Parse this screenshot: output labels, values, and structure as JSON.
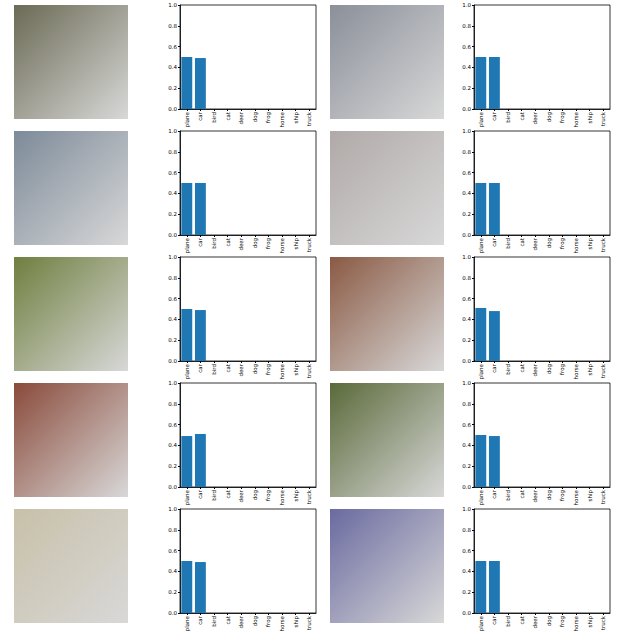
{
  "chart_data": [
    {
      "type": "bar",
      "categories": [
        "plane",
        "car",
        "bird",
        "cat",
        "deer",
        "dog",
        "frog",
        "horse",
        "ship",
        "truck"
      ],
      "values": [
        0.5,
        0.49,
        0,
        0,
        0,
        0,
        0,
        0,
        0,
        0
      ],
      "color": "#1f77b4",
      "ylim": [
        0,
        1
      ],
      "yticks": [
        {
          "value": 0,
          "label": "0.0"
        },
        0.2,
        0.4,
        0.6,
        0.8,
        {
          "value": 1,
          "label": "1.0"
        }
      ]
    },
    {
      "type": "bar",
      "categories": [
        "plane",
        "car",
        "bird",
        "cat",
        "deer",
        "dog",
        "frog",
        "horse",
        "ship",
        "truck"
      ],
      "values": [
        0.5,
        0.5,
        0,
        0,
        0,
        0,
        0,
        0,
        0,
        0
      ],
      "color": "#1f77b4",
      "ylim": [
        0,
        1
      ],
      "yticks": [
        {
          "value": 0,
          "label": "0.0"
        },
        0.2,
        0.4,
        0.6,
        0.8,
        {
          "value": 1,
          "label": "1.0"
        }
      ]
    },
    {
      "type": "bar",
      "categories": [
        "plane",
        "car",
        "bird",
        "cat",
        "deer",
        "dog",
        "frog",
        "horse",
        "ship",
        "truck"
      ],
      "values": [
        0.5,
        0.5,
        0,
        0,
        0,
        0,
        0,
        0,
        0,
        0
      ],
      "color": "#1f77b4",
      "ylim": [
        0,
        1
      ],
      "yticks": [
        {
          "value": 0,
          "label": "0.0"
        },
        0.2,
        0.4,
        0.6,
        0.8,
        {
          "value": 1,
          "label": "1.0"
        }
      ]
    },
    {
      "type": "bar",
      "categories": [
        "plane",
        "car",
        "bird",
        "cat",
        "deer",
        "dog",
        "frog",
        "horse",
        "ship",
        "truck"
      ],
      "values": [
        0.5,
        0.5,
        0,
        0,
        0,
        0,
        0,
        0,
        0,
        0
      ],
      "color": "#1f77b4",
      "ylim": [
        0,
        1
      ],
      "yticks": [
        {
          "value": 0,
          "label": "0.0"
        },
        0.2,
        0.4,
        0.6,
        0.8,
        {
          "value": 1,
          "label": "1.0"
        }
      ]
    },
    {
      "type": "bar",
      "categories": [
        "plane",
        "car",
        "bird",
        "cat",
        "deer",
        "dog",
        "frog",
        "horse",
        "ship",
        "truck"
      ],
      "values": [
        0.5,
        0.49,
        0,
        0,
        0,
        0,
        0,
        0,
        0,
        0
      ],
      "color": "#1f77b4",
      "ylim": [
        0,
        1
      ],
      "yticks": [
        {
          "value": 0,
          "label": "0.0"
        },
        0.2,
        0.4,
        0.6,
        0.8,
        {
          "value": 1,
          "label": "1.0"
        }
      ]
    },
    {
      "type": "bar",
      "categories": [
        "plane",
        "car",
        "bird",
        "cat",
        "deer",
        "dog",
        "frog",
        "horse",
        "ship",
        "truck"
      ],
      "values": [
        0.51,
        0.48,
        0,
        0,
        0,
        0,
        0,
        0,
        0,
        0
      ],
      "color": "#1f77b4",
      "ylim": [
        0,
        1
      ],
      "yticks": [
        {
          "value": 0,
          "label": "0.0"
        },
        0.2,
        0.4,
        0.6,
        0.8,
        {
          "value": 1,
          "label": "1.0"
        }
      ]
    },
    {
      "type": "bar",
      "categories": [
        "plane",
        "car",
        "bird",
        "cat",
        "deer",
        "dog",
        "frog",
        "horse",
        "ship",
        "truck"
      ],
      "values": [
        0.49,
        0.51,
        0,
        0,
        0,
        0,
        0,
        0,
        0,
        0
      ],
      "color": "#1f77b4",
      "ylim": [
        0,
        1
      ],
      "yticks": [
        {
          "value": 0,
          "label": "0.0"
        },
        0.2,
        0.4,
        0.6,
        0.8,
        {
          "value": 1,
          "label": "1.0"
        }
      ]
    },
    {
      "type": "bar",
      "categories": [
        "plane",
        "car",
        "bird",
        "cat",
        "deer",
        "dog",
        "frog",
        "horse",
        "ship",
        "truck"
      ],
      "values": [
        0.5,
        0.49,
        0,
        0,
        0,
        0,
        0,
        0,
        0,
        0
      ],
      "color": "#1f77b4",
      "ylim": [
        0,
        1
      ],
      "yticks": [
        {
          "value": 0,
          "label": "0.0"
        },
        0.2,
        0.4,
        0.6,
        0.8,
        {
          "value": 1,
          "label": "1.0"
        }
      ]
    },
    {
      "type": "bar",
      "categories": [
        "plane",
        "car",
        "bird",
        "cat",
        "deer",
        "dog",
        "frog",
        "horse",
        "ship",
        "truck"
      ],
      "values": [
        0.5,
        0.49,
        0,
        0,
        0,
        0,
        0,
        0,
        0,
        0
      ],
      "color": "#1f77b4",
      "ylim": [
        0,
        1
      ],
      "yticks": [
        {
          "value": 0,
          "label": "0.0"
        },
        0.2,
        0.4,
        0.6,
        0.8,
        {
          "value": 1,
          "label": "1.0"
        }
      ]
    },
    {
      "type": "bar",
      "categories": [
        "plane",
        "car",
        "bird",
        "cat",
        "deer",
        "dog",
        "frog",
        "horse",
        "ship",
        "truck"
      ],
      "values": [
        0.5,
        0.5,
        0,
        0,
        0,
        0,
        0,
        0,
        0,
        0
      ],
      "color": "#1f77b4",
      "ylim": [
        0,
        1
      ],
      "yticks": [
        {
          "value": 0,
          "label": "0.0"
        },
        0.2,
        0.4,
        0.6,
        0.8,
        {
          "value": 1,
          "label": "1.0"
        }
      ]
    }
  ]
}
